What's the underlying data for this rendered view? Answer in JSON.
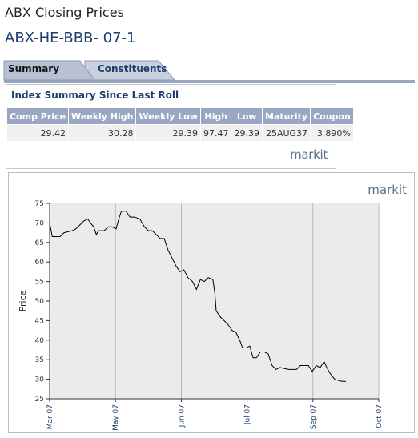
{
  "header": {
    "title": "ABX Closing Prices",
    "subtitle": "ABX-HE-BBB- 07-1"
  },
  "tabs": [
    "Summary",
    "Constituents"
  ],
  "table": {
    "title": "Index Summary Since Last Roll",
    "columns": [
      "Comp Price",
      "Weekly High",
      "Weekly Low",
      "High",
      "Low",
      "Maturity",
      "Coupon"
    ],
    "rows": [
      [
        29.42,
        30.28,
        29.39,
        97.47,
        29.39,
        "25AUG37",
        "3.890%"
      ]
    ],
    "logo": "markit"
  },
  "chart_data": {
    "type": "line",
    "logo": "markit",
    "y_label": "Price",
    "color": "#000000",
    "grid": "x",
    "x": [
      0,
      0.04,
      0.16,
      0.22,
      0.34,
      0.4,
      0.46,
      0.52,
      0.58,
      0.62,
      0.67,
      0.71,
      0.74,
      0.79,
      0.83,
      0.89,
      0.95,
      1.01,
      1.05,
      1.09,
      1.16,
      1.22,
      1.29,
      1.37,
      1.44,
      1.5,
      1.56,
      1.62,
      1.68,
      1.74,
      1.8,
      1.86,
      1.92,
      1.98,
      2.04,
      2.1,
      2.17,
      2.23,
      2.29,
      2.35,
      2.41,
      2.48,
      2.51,
      2.53,
      2.59,
      2.65,
      2.71,
      2.77,
      2.83,
      2.9,
      2.93,
      2.99,
      3.04,
      3.09,
      3.14,
      3.2,
      3.26,
      3.32,
      3.38,
      3.44,
      3.5,
      3.63,
      3.75,
      3.81,
      3.93,
      3.99,
      4.05,
      4.11,
      4.17,
      4.21,
      4.26,
      4.33,
      4.42,
      4.5
    ],
    "values": [
      70,
      66.5,
      66.5,
      67.5,
      68,
      68.5,
      69.5,
      70.5,
      71,
      70,
      69,
      67,
      68,
      68,
      68,
      69,
      69,
      68.5,
      71,
      73,
      73,
      71.5,
      71.5,
      71,
      69,
      68,
      68,
      67,
      66,
      66,
      63,
      61,
      59,
      57.5,
      58,
      56,
      55,
      53,
      55.5,
      55,
      56,
      55.5,
      52,
      47.5,
      46,
      45,
      44,
      42.5,
      42,
      39.5,
      38,
      38,
      38.5,
      35.5,
      35.5,
      37,
      37,
      36.5,
      33.5,
      32.5,
      33,
      32.5,
      32.5,
      33.5,
      33.5,
      32,
      33.5,
      33,
      34.5,
      33,
      31.5,
      30,
      29.5,
      29.42
    ],
    "xlim": [
      0,
      5
    ],
    "xticks": [
      {
        "value": 0,
        "label": "Mar 07"
      },
      {
        "value": 1,
        "label": "May 07"
      },
      {
        "value": 2,
        "label": "Jun 07"
      },
      {
        "value": 3,
        "label": "Jul 07"
      },
      {
        "value": 4,
        "label": "Sep 07"
      },
      {
        "value": 5,
        "label": "Oct 07"
      }
    ],
    "ylim": [
      25,
      75
    ],
    "yticks": [
      25,
      30,
      35,
      40,
      45,
      50,
      55,
      60,
      65,
      70,
      75
    ]
  }
}
